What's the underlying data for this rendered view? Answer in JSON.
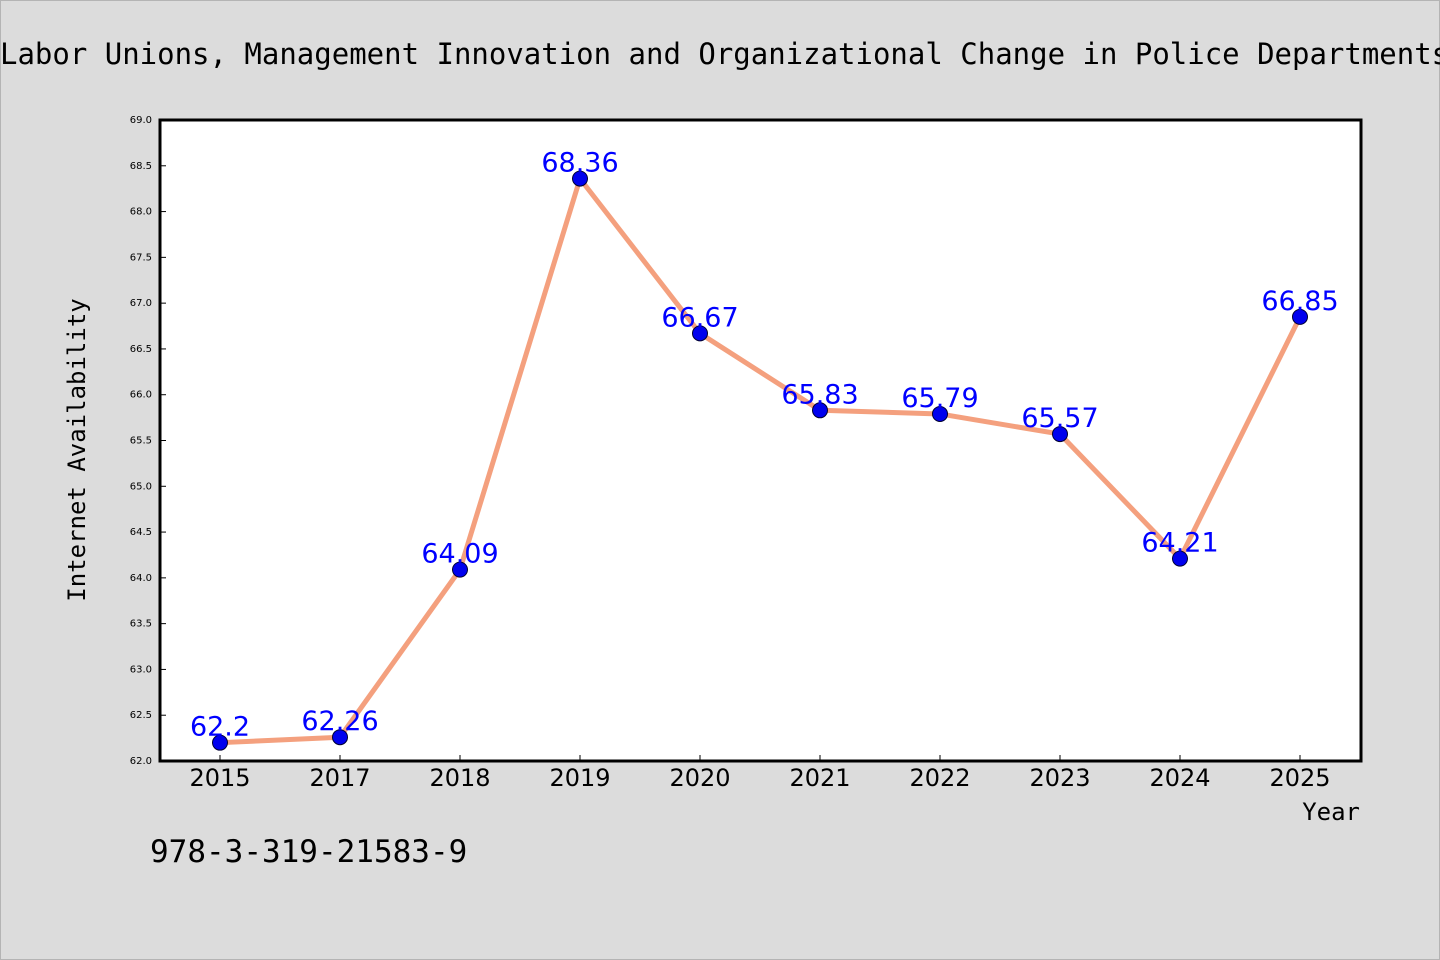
{
  "page": {
    "title": "Labor Unions, Management Innovation and Organizational Change in Police Departments",
    "isbn": "978-3-319-21583-9"
  },
  "chart_data": {
    "type": "line",
    "categories": [
      "2015",
      "2017",
      "2018",
      "2019",
      "2020",
      "2021",
      "2022",
      "2023",
      "2024",
      "2025"
    ],
    "series": [
      {
        "values": [
          62.2,
          62.26,
          64.09,
          68.36,
          66.67,
          65.83,
          65.79,
          65.57,
          64.21,
          66.85
        ]
      }
    ],
    "data_labels": [
      "62.2",
      "62.26",
      "64.09",
      "68.36",
      "66.67",
      "65.83",
      "65.79",
      "65.57",
      "64.21",
      "66.85"
    ],
    "xlabel": "Year",
    "ylabel": "Internet Availability",
    "ylim": [
      62.0,
      69.0
    ],
    "yticks": [
      62.0,
      62.5,
      63.0,
      63.5,
      64.0,
      64.5,
      65.0,
      65.5,
      66.0,
      66.5,
      67.0,
      67.5,
      68.0,
      68.5,
      69.0
    ],
    "ytick_labels": [
      "62.0",
      "62.5",
      "63.0",
      "63.5",
      "64.0",
      "64.5",
      "65.0",
      "65.5",
      "66.0",
      "66.5",
      "67.0",
      "67.5",
      "68.0",
      "68.5",
      "69.0"
    ],
    "grid": false,
    "colors": {
      "line": "#f4a07e",
      "marker": "#0000ee",
      "data_label": "#0000ff",
      "background": "#dcdcdc",
      "plot_background": "#ffffff"
    }
  }
}
